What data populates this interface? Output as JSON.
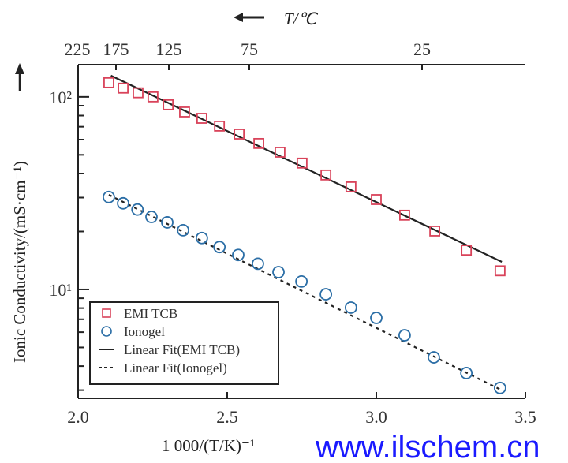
{
  "chart_data": {
    "type": "scatter",
    "xlabel": "1 000/(T/K)⁻¹",
    "ylabel": "Ionic Conductivity/(mS·cm⁻¹)",
    "top_xlabel": "T/℃",
    "xlim": [
      2.0,
      3.5
    ],
    "ylim": [
      2.72,
      147
    ],
    "yscale": "log",
    "x_ticks": [
      "2.0",
      "2.5",
      "3.0",
      "3.5"
    ],
    "x_tick_values": [
      2.0,
      2.5,
      3.0,
      3.5
    ],
    "y_ticks": [
      "10²",
      "10¹"
    ],
    "y_tick_values": [
      100,
      10
    ],
    "top_ticks": [
      "225",
      "175",
      "125",
      "75",
      "25"
    ],
    "grid": false,
    "legend_placement": "bottom-left",
    "series": [
      {
        "name": "EMI TCB",
        "marker": "square",
        "color": "#d9435a",
        "x": [
          2.103,
          2.151,
          2.201,
          2.251,
          2.302,
          2.357,
          2.415,
          2.474,
          2.54,
          2.606,
          2.677,
          2.751,
          2.831,
          2.915,
          3.0,
          3.095,
          3.196,
          3.302,
          3.415
        ],
        "y": [
          118.5,
          111,
          105,
          100,
          91,
          83.5,
          77.4,
          70.5,
          64.1,
          57.3,
          51.6,
          45.3,
          39.3,
          34.1,
          29.3,
          24.3,
          20.1,
          16.0,
          12.5
        ]
      },
      {
        "name": "Ionogel",
        "marker": "circle",
        "color": "#2b6ea6",
        "x": [
          2.103,
          2.151,
          2.199,
          2.246,
          2.299,
          2.352,
          2.415,
          2.474,
          2.537,
          2.603,
          2.672,
          2.749,
          2.831,
          2.915,
          3.0,
          3.095,
          3.193,
          3.302,
          3.415
        ],
        "y": [
          30.2,
          28.0,
          26.0,
          23.8,
          22.3,
          20.3,
          18.5,
          16.6,
          15.1,
          13.6,
          12.3,
          11.0,
          9.44,
          8.05,
          7.12,
          5.78,
          4.44,
          3.68,
          3.08
        ]
      },
      {
        "name": "Linear Fit(EMI TCB)",
        "style": "solid",
        "color": "#222222",
        "x": [
          2.11,
          3.421
        ],
        "y": [
          129,
          13.9
        ]
      },
      {
        "name": "Linear Fit(Ionogel)",
        "style": "dotted",
        "color": "#222222",
        "x": [
          2.103,
          3.42
        ],
        "y": [
          31,
          3.0
        ]
      }
    ]
  },
  "watermark": "www.ilschem.cn"
}
